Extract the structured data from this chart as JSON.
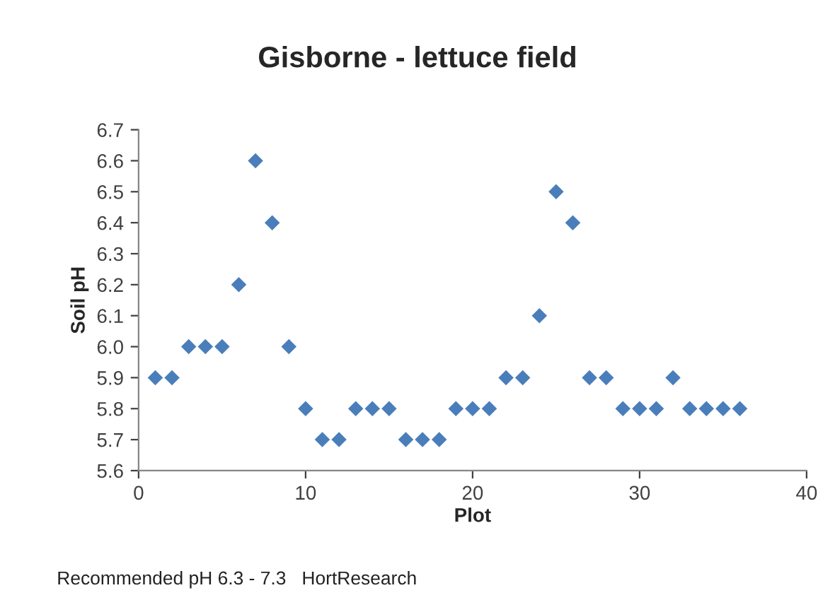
{
  "chart_data": {
    "type": "scatter",
    "title": "Gisborne - lettuce field",
    "xlabel": "Plot",
    "ylabel": "Soil pH",
    "annotations": [
      "Recommended pH 6.3 - 7.3   HortResearch"
    ],
    "x": [
      1,
      2,
      3,
      4,
      5,
      6,
      7,
      8,
      9,
      10,
      11,
      12,
      13,
      14,
      15,
      16,
      17,
      18,
      19,
      20,
      21,
      22,
      23,
      24,
      25,
      26,
      27,
      28,
      29,
      30,
      31,
      32,
      33,
      34,
      35,
      36
    ],
    "series": [
      {
        "color": "#4a7ebb",
        "values": [
          5.9,
          5.9,
          6.0,
          6.0,
          6.0,
          6.2,
          6.6,
          6.4,
          6.0,
          5.8,
          5.7,
          5.7,
          5.8,
          5.8,
          5.8,
          5.7,
          5.7,
          5.7,
          5.8,
          5.8,
          5.8,
          5.9,
          5.9,
          6.1,
          6.5,
          6.4,
          5.9,
          5.9,
          5.8,
          5.8,
          5.8,
          5.9,
          5.8,
          5.8,
          5.8,
          5.8
        ]
      }
    ],
    "xlim": [
      0,
      40
    ],
    "xticks": [
      0,
      10,
      20,
      30,
      40
    ],
    "ylim": [
      5.6,
      6.7
    ],
    "yticks": [
      {
        "value": 5.6,
        "label": "5.6"
      },
      {
        "value": 5.7,
        "label": "5.7"
      },
      {
        "value": 5.8,
        "label": "5.8"
      },
      {
        "value": 5.9,
        "label": "5.9"
      },
      {
        "value": 6.0,
        "label": "6.0"
      },
      {
        "value": 6.1,
        "label": "6.1"
      },
      {
        "value": 6.2,
        "label": "6.2"
      },
      {
        "value": 6.3,
        "label": "6.3"
      },
      {
        "value": 6.4,
        "label": "6.4"
      },
      {
        "value": 6.5,
        "label": "6.5"
      },
      {
        "value": 6.6,
        "label": "6.6"
      },
      {
        "value": 6.7,
        "label": "6.7"
      }
    ],
    "grid": false,
    "legend": false,
    "marker": "diamond"
  }
}
